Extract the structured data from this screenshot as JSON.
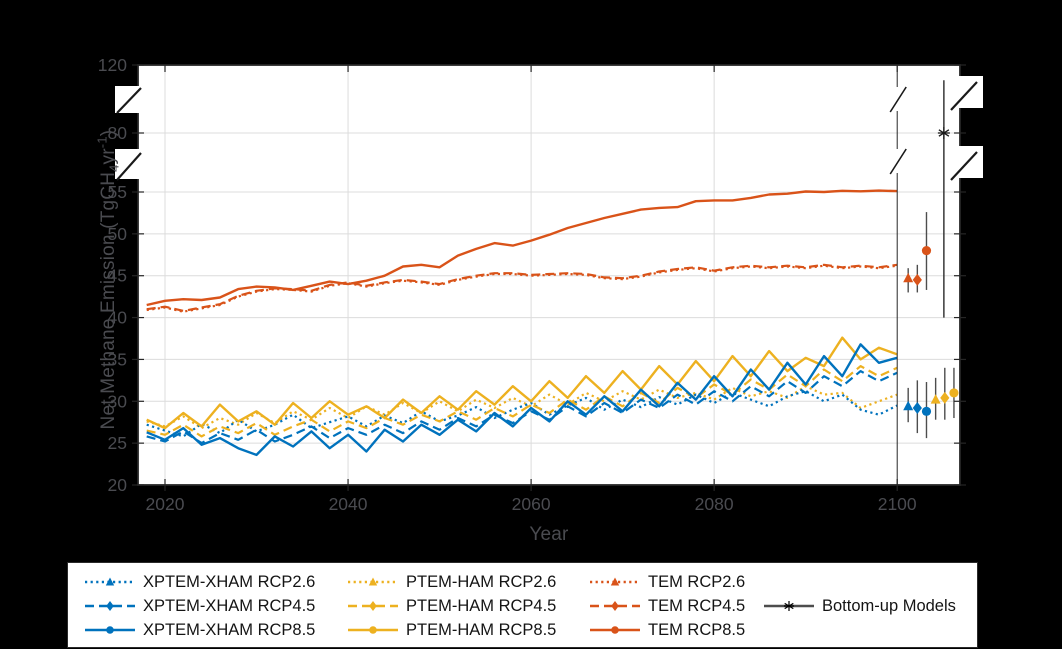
{
  "figure": {
    "background": "#000000",
    "plot_background": "#ffffff",
    "axis_color": "#262626",
    "grid_color": "#dcdcdc",
    "tick_label_color": "#4a4b50",
    "xlabel": "Year",
    "ylabel_pre": "Net Methane Emission (TgCH",
    "ylabel_sub": "4",
    "ylabel_mid": "yr",
    "ylabel_sup": "-1",
    "ylabel_post": ")"
  },
  "chart_data": {
    "type": "line",
    "title": "",
    "xlabel": "Year",
    "ylabel": "Net Methane Emission (TgCH4 yr-1)",
    "x_ticks": [
      2020,
      2040,
      2060,
      2080,
      2100
    ],
    "y_ticks": [
      20,
      25,
      30,
      35,
      40,
      45,
      50,
      55,
      80,
      120
    ],
    "y_axis_breaks": [
      [
        55,
        80
      ],
      [
        80,
        120
      ]
    ],
    "x_range": [
      2017,
      2107
    ],
    "divider_year": 2100,
    "grid": true,
    "colors": {
      "blue": "#0072BD",
      "yellow": "#EDB120",
      "orange": "#D95319",
      "gray": "#4d4d4d",
      "black": "#1a1a1a"
    },
    "years": [
      2018,
      2020,
      2022,
      2024,
      2026,
      2028,
      2030,
      2032,
      2034,
      2036,
      2038,
      2040,
      2042,
      2044,
      2046,
      2048,
      2050,
      2052,
      2054,
      2056,
      2058,
      2060,
      2062,
      2064,
      2066,
      2068,
      2070,
      2072,
      2074,
      2076,
      2078,
      2080,
      2082,
      2084,
      2086,
      2088,
      2090,
      2092,
      2094,
      2096,
      2098,
      2100
    ],
    "series": [
      {
        "name": "TEM RCP8.5",
        "color": "orange",
        "line": "solid",
        "marker": "circle",
        "values": [
          41.5,
          42.0,
          42.2,
          42.1,
          42.4,
          43.4,
          43.7,
          43.6,
          43.3,
          43.8,
          44.3,
          44.0,
          44.4,
          45.0,
          46.1,
          46.3,
          46.0,
          47.4,
          48.2,
          48.9,
          48.6,
          49.2,
          49.9,
          50.7,
          51.3,
          51.9,
          52.4,
          52.9,
          53.1,
          53.2,
          53.9,
          54.0,
          54.0,
          54.3,
          54.7,
          54.8,
          55.2,
          55.0,
          55.5,
          55.3,
          55.6,
          55.4
        ]
      },
      {
        "name": "TEM RCP4.5",
        "color": "orange",
        "line": "dashed",
        "marker": "diamond",
        "values": [
          41.0,
          41.3,
          40.8,
          41.2,
          41.6,
          42.6,
          43.2,
          43.5,
          43.4,
          43.2,
          43.9,
          44.2,
          43.8,
          44.2,
          44.5,
          44.3,
          44.0,
          44.6,
          45.0,
          45.3,
          45.3,
          45.1,
          45.2,
          45.3,
          45.2,
          44.8,
          44.7,
          45.0,
          45.5,
          45.8,
          46.0,
          45.6,
          46.0,
          46.2,
          46.0,
          46.2,
          46.0,
          46.3,
          46.0,
          46.2,
          46.0,
          46.3
        ]
      },
      {
        "name": "TEM RCP2.6",
        "color": "orange",
        "line": "dotted",
        "marker": "triangle",
        "values": [
          40.9,
          41.2,
          40.7,
          41.1,
          41.5,
          42.5,
          43.1,
          43.4,
          43.3,
          43.1,
          43.8,
          44.1,
          43.7,
          44.1,
          44.4,
          44.2,
          43.9,
          44.5,
          44.9,
          45.2,
          45.2,
          45.0,
          45.1,
          45.2,
          45.1,
          44.7,
          44.6,
          44.9,
          45.4,
          45.7,
          45.9,
          45.5,
          45.9,
          46.1,
          45.9,
          46.1,
          45.9,
          46.2,
          45.9,
          46.1,
          45.9,
          46.2
        ]
      },
      {
        "name": "PTEM-HAM RCP2.6",
        "color": "yellow",
        "line": "dotted",
        "marker": "triangle",
        "values": [
          27.6,
          27.0,
          28.2,
          26.8,
          28.0,
          27.2,
          28.6,
          27.4,
          28.8,
          27.8,
          29.2,
          28.0,
          29.4,
          28.4,
          29.8,
          28.6,
          30.0,
          28.8,
          30.2,
          29.2,
          30.4,
          29.4,
          30.8,
          29.6,
          31.0,
          30.0,
          31.2,
          30.2,
          31.4,
          30.4,
          31.0,
          30.2,
          31.6,
          30.6,
          31.2,
          30.4,
          31.8,
          30.8,
          31.0,
          29.2,
          30.0,
          30.8
        ]
      },
      {
        "name": "XPTEM-XHAM RCP2.6",
        "color": "blue",
        "line": "dotted",
        "marker": "triangle",
        "values": [
          27.2,
          26.5,
          25.8,
          27.3,
          26.2,
          27.8,
          26.4,
          27.2,
          28.4,
          26.8,
          27.5,
          28.2,
          27.0,
          28.3,
          27.4,
          28.8,
          27.6,
          28.3,
          29.3,
          28.0,
          29.0,
          29.8,
          28.4,
          29.5,
          30.4,
          29.0,
          30.2,
          29.3,
          30.5,
          29.6,
          30.8,
          29.8,
          31.0,
          30.2,
          29.4,
          30.6,
          31.2,
          30.0,
          30.8,
          29.0,
          28.4,
          29.5
        ]
      },
      {
        "name": "PTEM-HAM RCP4.5",
        "color": "yellow",
        "line": "dashed",
        "marker": "diamond",
        "values": [
          26.5,
          26.0,
          27.2,
          25.8,
          27.0,
          26.2,
          27.4,
          26.0,
          27.0,
          27.8,
          26.4,
          27.6,
          26.8,
          28.0,
          27.2,
          28.4,
          27.6,
          28.8,
          27.8,
          29.2,
          28.2,
          29.6,
          28.6,
          30.2,
          29.0,
          30.6,
          29.4,
          31.0,
          29.8,
          31.6,
          30.4,
          32.0,
          30.8,
          32.6,
          31.4,
          33.2,
          31.8,
          33.8,
          32.4,
          34.2,
          33.0,
          34.0
        ]
      },
      {
        "name": "XPTEM-XHAM RCP4.5",
        "color": "blue",
        "line": "dashed",
        "marker": "diamond",
        "values": [
          25.8,
          25.2,
          26.4,
          25.0,
          26.2,
          25.4,
          26.6,
          25.2,
          26.0,
          27.0,
          25.6,
          26.8,
          26.0,
          27.2,
          26.2,
          27.6,
          26.6,
          28.0,
          27.0,
          28.4,
          27.4,
          28.8,
          27.8,
          29.4,
          28.2,
          29.8,
          28.6,
          30.2,
          29.2,
          30.8,
          29.6,
          31.2,
          30.0,
          31.8,
          30.6,
          32.4,
          31.0,
          33.0,
          31.8,
          33.6,
          32.4,
          33.4
        ]
      },
      {
        "name": "PTEM-HAM RCP8.5",
        "color": "yellow",
        "line": "solid",
        "marker": "circle",
        "values": [
          27.8,
          26.8,
          28.6,
          27.0,
          29.6,
          27.6,
          28.8,
          27.2,
          29.8,
          28.0,
          30.0,
          28.4,
          29.4,
          28.0,
          30.2,
          28.6,
          30.6,
          29.0,
          31.2,
          29.6,
          31.8,
          30.0,
          32.4,
          30.4,
          33.0,
          31.0,
          33.6,
          31.4,
          34.2,
          32.0,
          34.8,
          32.4,
          35.4,
          33.0,
          36.0,
          33.6,
          35.2,
          34.2,
          37.6,
          35.0,
          36.4,
          35.6
        ]
      },
      {
        "name": "XPTEM-XHAM RCP8.5",
        "color": "blue",
        "line": "solid",
        "marker": "circle",
        "values": [
          26.3,
          25.4,
          26.8,
          24.8,
          25.6,
          24.4,
          23.6,
          25.8,
          24.6,
          26.4,
          24.4,
          26.0,
          24.0,
          26.6,
          25.2,
          27.2,
          26.0,
          27.8,
          26.4,
          28.6,
          27.0,
          29.2,
          27.6,
          30.0,
          28.4,
          30.6,
          28.8,
          31.4,
          29.4,
          32.2,
          30.2,
          33.0,
          30.6,
          33.8,
          31.4,
          34.6,
          32.0,
          35.4,
          33.0,
          36.8,
          34.6,
          35.2
        ]
      }
    ],
    "error_bars": [
      {
        "name": "TEM RCP2.6",
        "x": 2101.2,
        "y": 44.7,
        "lo": 43.0,
        "hi": 45.9,
        "color": "orange",
        "marker": "triangle"
      },
      {
        "name": "TEM RCP4.5",
        "x": 2102.2,
        "y": 44.5,
        "lo": 43.0,
        "hi": 46.3,
        "color": "orange",
        "marker": "diamond"
      },
      {
        "name": "TEM RCP8.5",
        "x": 2103.2,
        "y": 48.0,
        "lo": 43.3,
        "hi": 52.6,
        "color": "orange",
        "marker": "circle"
      },
      {
        "name": "XPTEM-XHAM RCP2.6",
        "x": 2101.2,
        "y": 29.4,
        "lo": 27.5,
        "hi": 31.6,
        "color": "blue",
        "marker": "triangle"
      },
      {
        "name": "XPTEM-XHAM RCP4.5",
        "x": 2102.2,
        "y": 29.2,
        "lo": 26.2,
        "hi": 32.5,
        "color": "blue",
        "marker": "diamond"
      },
      {
        "name": "XPTEM-XHAM RCP8.5",
        "x": 2103.2,
        "y": 28.8,
        "lo": 25.6,
        "hi": 32.3,
        "color": "blue",
        "marker": "circle"
      },
      {
        "name": "PTEM-HAM RCP2.6",
        "x": 2104.2,
        "y": 30.2,
        "lo": 27.8,
        "hi": 32.8,
        "color": "yellow",
        "marker": "triangle"
      },
      {
        "name": "PTEM-HAM RCP4.5",
        "x": 2105.2,
        "y": 30.4,
        "lo": 27.8,
        "hi": 34.0,
        "color": "yellow",
        "marker": "diamond"
      },
      {
        "name": "PTEM-HAM RCP8.5",
        "x": 2106.2,
        "y": 31.0,
        "lo": 28.0,
        "hi": 34.0,
        "color": "yellow",
        "marker": "circle"
      },
      {
        "name": "Bottom-up Models",
        "x": 2105.1,
        "y": 80.0,
        "lo": 40.0,
        "hi": 111.0,
        "color": "black",
        "marker": "asterisk"
      }
    ]
  },
  "legend": {
    "entries": [
      {
        "label": "XPTEM-XHAM RCP2.6",
        "color": "blue",
        "line": "dotted",
        "marker": "triangle",
        "col": 0,
        "row": 0
      },
      {
        "label": "XPTEM-XHAM RCP4.5",
        "color": "blue",
        "line": "dashed",
        "marker": "diamond",
        "col": 0,
        "row": 1
      },
      {
        "label": "XPTEM-XHAM RCP8.5",
        "color": "blue",
        "line": "solid",
        "marker": "circle",
        "col": 0,
        "row": 2
      },
      {
        "label": "PTEM-HAM RCP2.6",
        "color": "yellow",
        "line": "dotted",
        "marker": "triangle",
        "col": 1,
        "row": 0
      },
      {
        "label": "PTEM-HAM RCP4.5",
        "color": "yellow",
        "line": "dashed",
        "marker": "diamond",
        "col": 1,
        "row": 1
      },
      {
        "label": "PTEM-HAM RCP8.5",
        "color": "yellow",
        "line": "solid",
        "marker": "circle",
        "col": 1,
        "row": 2
      },
      {
        "label": "TEM RCP2.6",
        "color": "orange",
        "line": "dotted",
        "marker": "triangle",
        "col": 2,
        "row": 0
      },
      {
        "label": "TEM RCP4.5",
        "color": "orange",
        "line": "dashed",
        "marker": "diamond",
        "col": 2,
        "row": 1
      },
      {
        "label": "TEM RCP8.5",
        "color": "orange",
        "line": "solid",
        "marker": "circle",
        "col": 2,
        "row": 2
      },
      {
        "label": "Bottom-up Models",
        "color": "gray",
        "line": "solid",
        "marker": "asterisk",
        "col": 3,
        "row": 1
      }
    ]
  }
}
